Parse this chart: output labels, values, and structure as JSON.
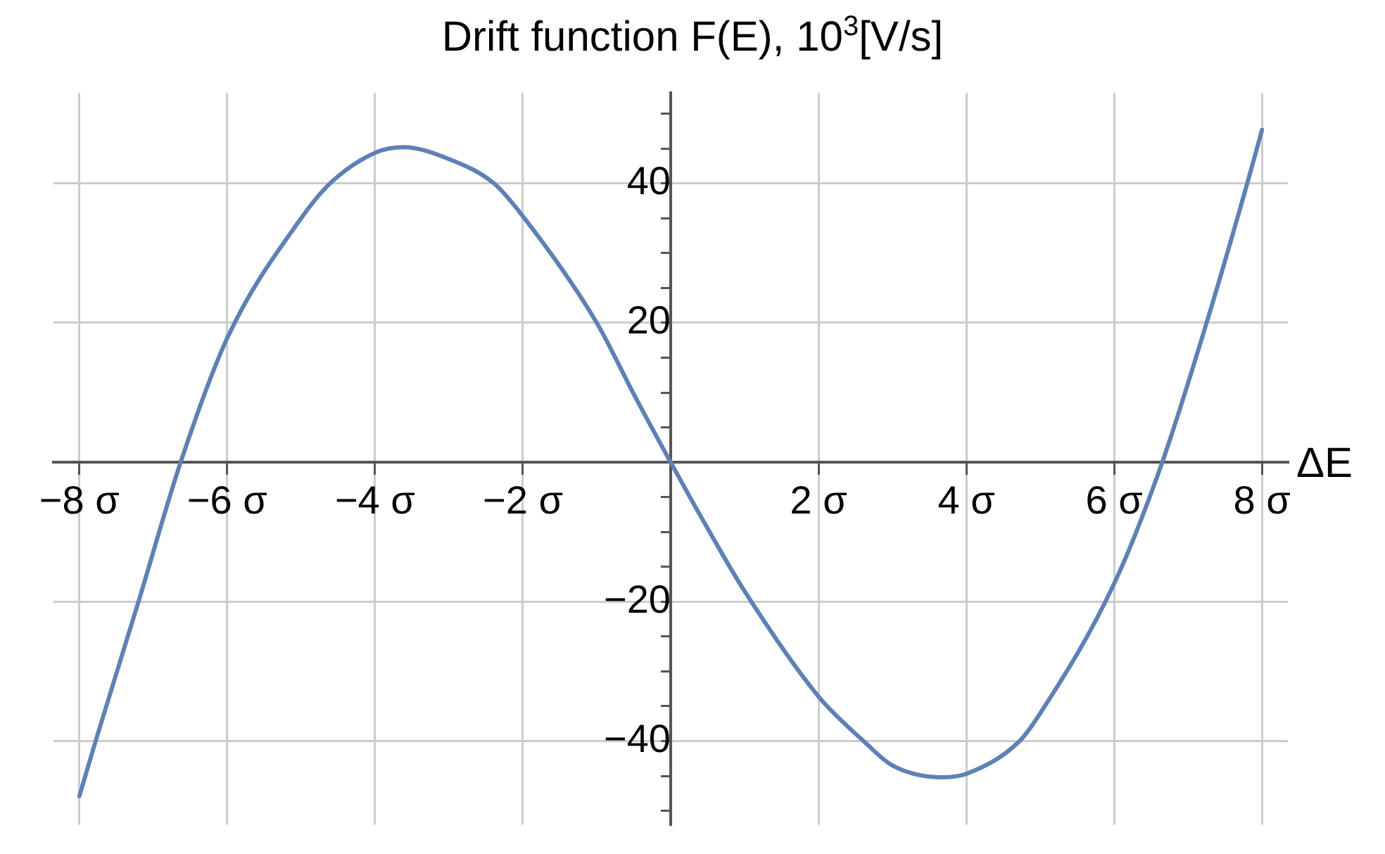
{
  "chart_data": {
    "type": "line",
    "title": "Drift function F(E), 10$^{3}$[V/s]",
    "xlabel": "ΔE",
    "series": [
      {
        "color": "#5e81b5",
        "x": [
          -8,
          -7.78,
          -7.2,
          -6.63,
          -6,
          -5,
          -4.61,
          -4,
          -3.62,
          -3,
          -2.39,
          -2,
          -1,
          -0.5,
          0,
          0.5,
          1,
          2,
          2.61,
          3,
          3.68,
          4,
          4.72,
          5,
          6,
          6.65,
          7.25,
          7.8,
          8
        ],
        "values": [
          -47.9,
          -40,
          -20,
          0,
          17.8,
          35,
          40,
          44.4,
          45.2,
          43.5,
          40,
          35.3,
          20,
          9.8,
          0,
          -9.5,
          -18.5,
          -33.6,
          -40,
          -43.5,
          -45.2,
          -44.7,
          -40,
          -36,
          -17.4,
          0,
          20,
          40,
          47.7
        ]
      }
    ],
    "xlim": [
      -8.35,
      8.35
    ],
    "ylim": [
      -52,
      53
    ],
    "xticks": [
      {
        "value": -8,
        "label": "−8 σ"
      },
      {
        "value": -6,
        "label": "−6 σ"
      },
      {
        "value": -4,
        "label": "−4 σ"
      },
      {
        "value": -2,
        "label": "−2 σ"
      },
      {
        "value": 2,
        "label": "2 σ"
      },
      {
        "value": 4,
        "label": "4 σ"
      },
      {
        "value": 6,
        "label": "6 σ"
      },
      {
        "value": 8,
        "label": "8 σ"
      }
    ],
    "yticks": [
      {
        "value": -50,
        "label": null
      },
      {
        "value": -45,
        "label": null
      },
      {
        "value": -40,
        "label": "−40"
      },
      {
        "value": -35,
        "label": null
      },
      {
        "value": -30,
        "label": null
      },
      {
        "value": -25,
        "label": null
      },
      {
        "value": -20,
        "label": "−20"
      },
      {
        "value": -15,
        "label": null
      },
      {
        "value": -10,
        "label": null
      },
      {
        "value": -5,
        "label": null
      },
      {
        "value": 5,
        "label": null
      },
      {
        "value": 10,
        "label": null
      },
      {
        "value": 15,
        "label": null
      },
      20,
      {
        "value": 25,
        "label": null
      },
      {
        "value": 30,
        "label": null
      },
      {
        "value": 35,
        "label": null
      },
      40,
      {
        "value": 45,
        "label": null
      },
      {
        "value": 50,
        "label": null
      }
    ],
    "grid": true,
    "legend": false,
    "marker": "none",
    "line_style": "solid"
  }
}
